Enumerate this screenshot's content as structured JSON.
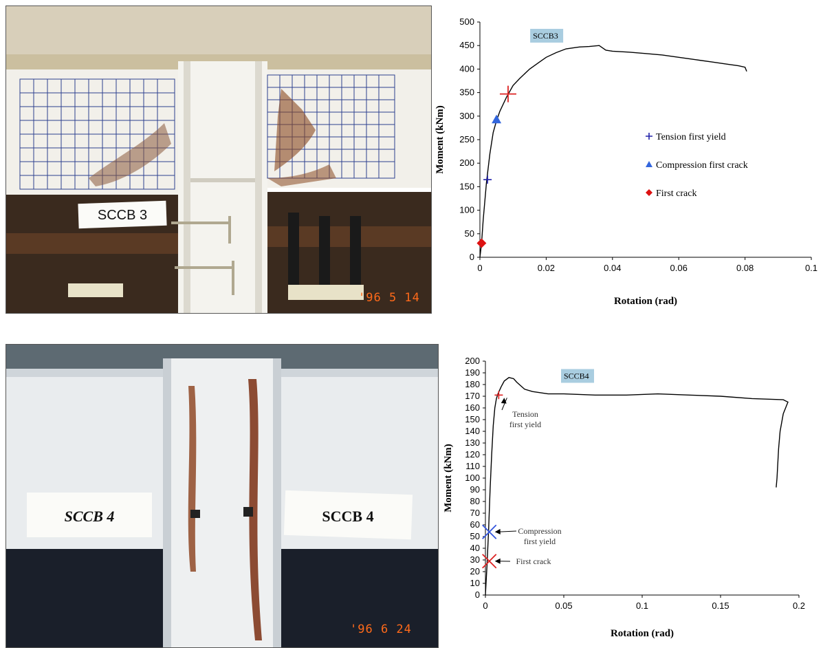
{
  "photos": [
    {
      "sign": "SCCB 3",
      "date": "'96  5  14"
    },
    {
      "sign_left": "SCCB 4",
      "sign_right": "SCCB 4",
      "date": "'96  6  24"
    }
  ],
  "colors": {
    "tension": "#2222aa",
    "compression": "#3366dd",
    "first_crack": "#dd1111",
    "red_marker": "#dd2222"
  },
  "chart_data": [
    {
      "type": "line",
      "series_label": "SCCB3",
      "xlabel": "Rotation (rad)",
      "ylabel": "Moment (kNm)",
      "xlim": [
        0,
        0.1
      ],
      "ylim": [
        0,
        500
      ],
      "xticks": [
        0,
        0.02,
        0.04,
        0.06,
        0.08,
        0.1
      ],
      "xtick_labels": [
        "0",
        "0.02",
        "0.04",
        "0.06",
        "0.08",
        "0.1"
      ],
      "yticks": [
        0,
        50,
        100,
        150,
        200,
        250,
        300,
        350,
        400,
        450,
        500
      ],
      "grid": false,
      "series": [
        {
          "x": [
            0,
            0.0005,
            0.001,
            0.002,
            0.003,
            0.004,
            0.005,
            0.006,
            0.008,
            0.01,
            0.012,
            0.015,
            0.018,
            0.02,
            0.023,
            0.026,
            0.03,
            0.033,
            0.036,
            0.037,
            0.038,
            0.04,
            0.045,
            0.05,
            0.055,
            0.06,
            0.065,
            0.07,
            0.075,
            0.078,
            0.08,
            0.0805
          ],
          "y": [
            0,
            30,
            80,
            160,
            220,
            265,
            290,
            310,
            340,
            365,
            380,
            400,
            415,
            425,
            435,
            443,
            447,
            448,
            450,
            445,
            440,
            438,
            436,
            433,
            430,
            425,
            420,
            415,
            410,
            407,
            404,
            395
          ]
        }
      ],
      "markers": [
        {
          "label": "Tension first yield",
          "symbol": "plus",
          "color": "#2222aa",
          "x": 0.0023,
          "y": 165
        },
        {
          "label": "Compression first crack",
          "symbol": "triangle",
          "color": "#3366dd",
          "x": 0.005,
          "y": 293
        },
        {
          "label": "First crack",
          "symbol": "diamond",
          "color": "#dd1111",
          "x": 0.0005,
          "y": 30
        },
        {
          "label": "",
          "symbol": "plus-large",
          "color": "#dd2222",
          "x": 0.0085,
          "y": 347
        }
      ],
      "legend": [
        {
          "label": "Tension first yield",
          "symbol": "plus",
          "color": "#2222aa"
        },
        {
          "label": "Compression first crack",
          "symbol": "triangle",
          "color": "#3366dd"
        },
        {
          "label": "First crack",
          "symbol": "diamond",
          "color": "#dd1111"
        }
      ],
      "legend_position": "center-right"
    },
    {
      "type": "line",
      "series_label": "SCCB4",
      "xlabel": "Rotation (rad)",
      "ylabel": "Moment (kNm)",
      "xlim": [
        0,
        0.2
      ],
      "ylim": [
        0,
        200
      ],
      "xticks": [
        0,
        0.05,
        0.1,
        0.15,
        0.2
      ],
      "xtick_labels": [
        "0",
        "0.05",
        "0.1",
        "0.15",
        "0.2"
      ],
      "yticks": [
        0,
        10,
        20,
        30,
        40,
        50,
        60,
        70,
        80,
        90,
        100,
        110,
        120,
        130,
        140,
        150,
        160,
        170,
        180,
        190,
        200
      ],
      "grid": false,
      "series": [
        {
          "x": [
            0,
            0.001,
            0.002,
            0.003,
            0.004,
            0.005,
            0.006,
            0.007,
            0.008,
            0.01,
            0.012,
            0.015,
            0.018,
            0.02,
            0.025,
            0.03,
            0.04,
            0.05,
            0.07,
            0.09,
            0.11,
            0.13,
            0.15,
            0.17,
            0.19,
            0.193,
            0.19,
            0.188,
            0.187,
            0.186,
            0.1855
          ],
          "y": [
            0,
            25,
            55,
            90,
            120,
            145,
            160,
            168,
            172,
            178,
            183,
            186,
            185,
            182,
            176,
            174,
            172,
            172,
            171,
            171,
            172,
            171,
            170,
            168,
            167,
            165,
            155,
            140,
            125,
            100,
            92
          ]
        }
      ],
      "markers": [
        {
          "label": "Tension first yield",
          "symbol": "plus",
          "color": "#dd2222",
          "x": 0.0085,
          "y": 171
        },
        {
          "label": "Compression first yield",
          "symbol": "x",
          "color": "#3355dd",
          "x": 0.0025,
          "y": 54
        },
        {
          "label": "First crack",
          "symbol": "x",
          "color": "#dd2222",
          "x": 0.0025,
          "y": 29
        }
      ],
      "annotations": [
        {
          "lines": [
            "Tension",
            "first yield"
          ],
          "target": [
            0.0085,
            171
          ]
        },
        {
          "lines": [
            "Compression",
            "first yield"
          ],
          "target": [
            0.0025,
            54
          ]
        },
        {
          "lines": [
            "First crack"
          ],
          "target": [
            0.0025,
            29
          ]
        }
      ]
    }
  ]
}
